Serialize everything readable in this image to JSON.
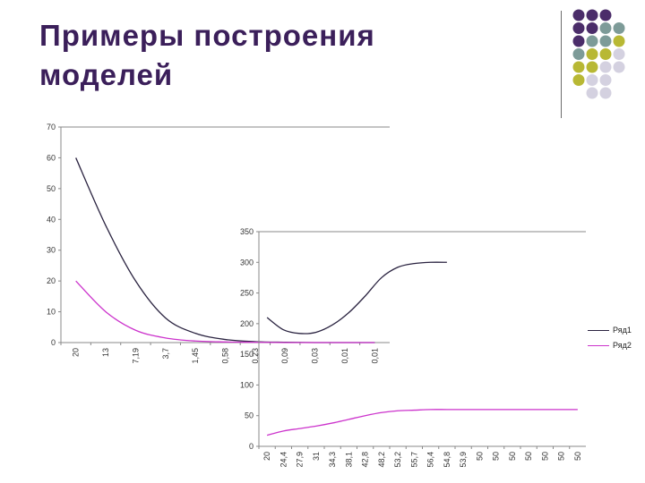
{
  "slide": {
    "title_line1": "Примеры построения",
    "title_line2": "моделей",
    "accent_colors": {
      "title": "#3b1f5a",
      "dark_purple": "#4b2d6a",
      "teal_gray": "#7d9b98",
      "olive": "#b8b834",
      "light_lavender": "#d4d1e0"
    },
    "dot_grid": [
      [
        "#4b2d6a",
        "#4b2d6a",
        "#4b2d6a",
        ""
      ],
      [
        "#4b2d6a",
        "#4b2d6a",
        "#7d9b98",
        "#7d9b98"
      ],
      [
        "#4b2d6a",
        "#7d9b98",
        "#7d9b98",
        "#b8b834"
      ],
      [
        "#7d9b98",
        "#b8b834",
        "#b8b834",
        "#d4d1e0"
      ],
      [
        "#b8b834",
        "#b8b834",
        "#d4d1e0",
        "#d4d1e0"
      ],
      [
        "#b8b834",
        "#d4d1e0",
        "#d4d1e0",
        ""
      ],
      [
        "",
        "#d4d1e0",
        "#d4d1e0",
        ""
      ]
    ]
  },
  "chart_data": [
    {
      "type": "line",
      "ylim": [
        0,
        70
      ],
      "yticks": [
        "0",
        "10",
        "20",
        "30",
        "40",
        "50",
        "60",
        "70"
      ],
      "categories": [
        "20",
        "13",
        "7,19",
        "3,7",
        "1,45",
        "0,58",
        "0,23",
        "0,09",
        "0,03",
        "0,01",
        "0,01"
      ],
      "series": [
        {
          "color": "#2a2340",
          "values": [
            60,
            38,
            20,
            8,
            3,
            1,
            0.3,
            0.1,
            0,
            0,
            0
          ]
        },
        {
          "color": "#cc33cc",
          "values": [
            20,
            10,
            4,
            1.5,
            0.5,
            0.2,
            0.1,
            0,
            0,
            0,
            0
          ]
        }
      ],
      "grid": false
    },
    {
      "type": "line",
      "ylim": [
        0,
        350
      ],
      "yticks": [
        "0",
        "50",
        "100",
        "150",
        "200",
        "250",
        "300",
        "350"
      ],
      "categories": [
        "20",
        "24,4",
        "27,9",
        "31",
        "34,3",
        "38,1",
        "42,8",
        "48,2",
        "53,2",
        "55,7",
        "56,4",
        "54,8",
        "53,9",
        "50",
        "50",
        "50",
        "50",
        "50",
        "50",
        "50"
      ],
      "series": [
        {
          "name": "Ряд1",
          "color": "#2a2340",
          "values": [
            210,
            190,
            184,
            186,
            198,
            218,
            245,
            275,
            292,
            298,
            300,
            300,
            null,
            null,
            null,
            null,
            null,
            null,
            null,
            null
          ]
        },
        {
          "name": "Ряд2",
          "color": "#cc33cc",
          "values": [
            18,
            25,
            29,
            33,
            38,
            44,
            50,
            55,
            58,
            59,
            60,
            60,
            60,
            60,
            60,
            60,
            60,
            60,
            60,
            60
          ]
        }
      ],
      "legend_position": "right",
      "grid": false
    }
  ]
}
